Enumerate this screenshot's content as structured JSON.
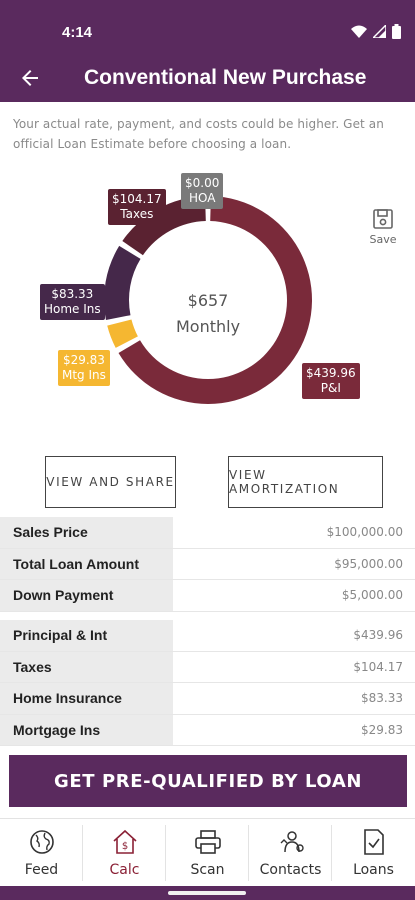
{
  "status": {
    "time": "4:14"
  },
  "header": {
    "title": "Conventional New Purchase"
  },
  "disclaimer": "Your actual rate, payment, and costs could be higher. Get an official Loan Estimate before choosing a loan.",
  "chart_data": {
    "type": "pie",
    "center_label": {
      "value": "$657",
      "caption": "Monthly"
    },
    "categories": [
      "P&I",
      "Mtg Ins",
      "Home Ins",
      "Taxes",
      "HOA"
    ],
    "values": [
      439.96,
      29.83,
      83.33,
      104.17,
      0.0
    ],
    "labels": {
      "pi": {
        "amount": "$439.96",
        "name": "P&I"
      },
      "mtg": {
        "amount": "$29.83",
        "name": "Mtg Ins"
      },
      "home": {
        "amount": "$83.33",
        "name": "Home Ins"
      },
      "taxes": {
        "amount": "$104.17",
        "name": "Taxes"
      },
      "hoa": {
        "amount": "$0.00",
        "name": "HOA"
      }
    },
    "colors": {
      "pi": "#7a2a3a",
      "mtg": "#f5b731",
      "home": "#45284a",
      "taxes": "#5a2231",
      "hoa": "#7a7a7a"
    }
  },
  "save": {
    "label": "Save"
  },
  "buttons": {
    "share": "VIEW AND SHARE",
    "amortization": "VIEW AMORTIZATION"
  },
  "loan_table": [
    {
      "label": "Sales Price",
      "value": "$100,000.00"
    },
    {
      "label": "Total Loan Amount",
      "value": "$95,000.00"
    },
    {
      "label": "Down Payment",
      "value": "$5,000.00"
    }
  ],
  "payment_table": [
    {
      "label": "Principal & Int",
      "value": "$439.96"
    },
    {
      "label": "Taxes",
      "value": "$104.17"
    },
    {
      "label": "Home Insurance",
      "value": "$83.33"
    },
    {
      "label": "Mortgage Ins",
      "value": "$29.83"
    }
  ],
  "cta": "GET PRE-QUALIFIED BY LOAN",
  "nav": [
    {
      "label": "Feed",
      "icon": "globe-icon"
    },
    {
      "label": "Calc",
      "icon": "house-dollar-icon"
    },
    {
      "label": "Scan",
      "icon": "printer-icon"
    },
    {
      "label": "Contacts",
      "icon": "contacts-icon"
    },
    {
      "label": "Loans",
      "icon": "document-check-icon"
    }
  ],
  "theme": {
    "primary": "#5a2a5e",
    "active_tab": "#8a2035"
  }
}
